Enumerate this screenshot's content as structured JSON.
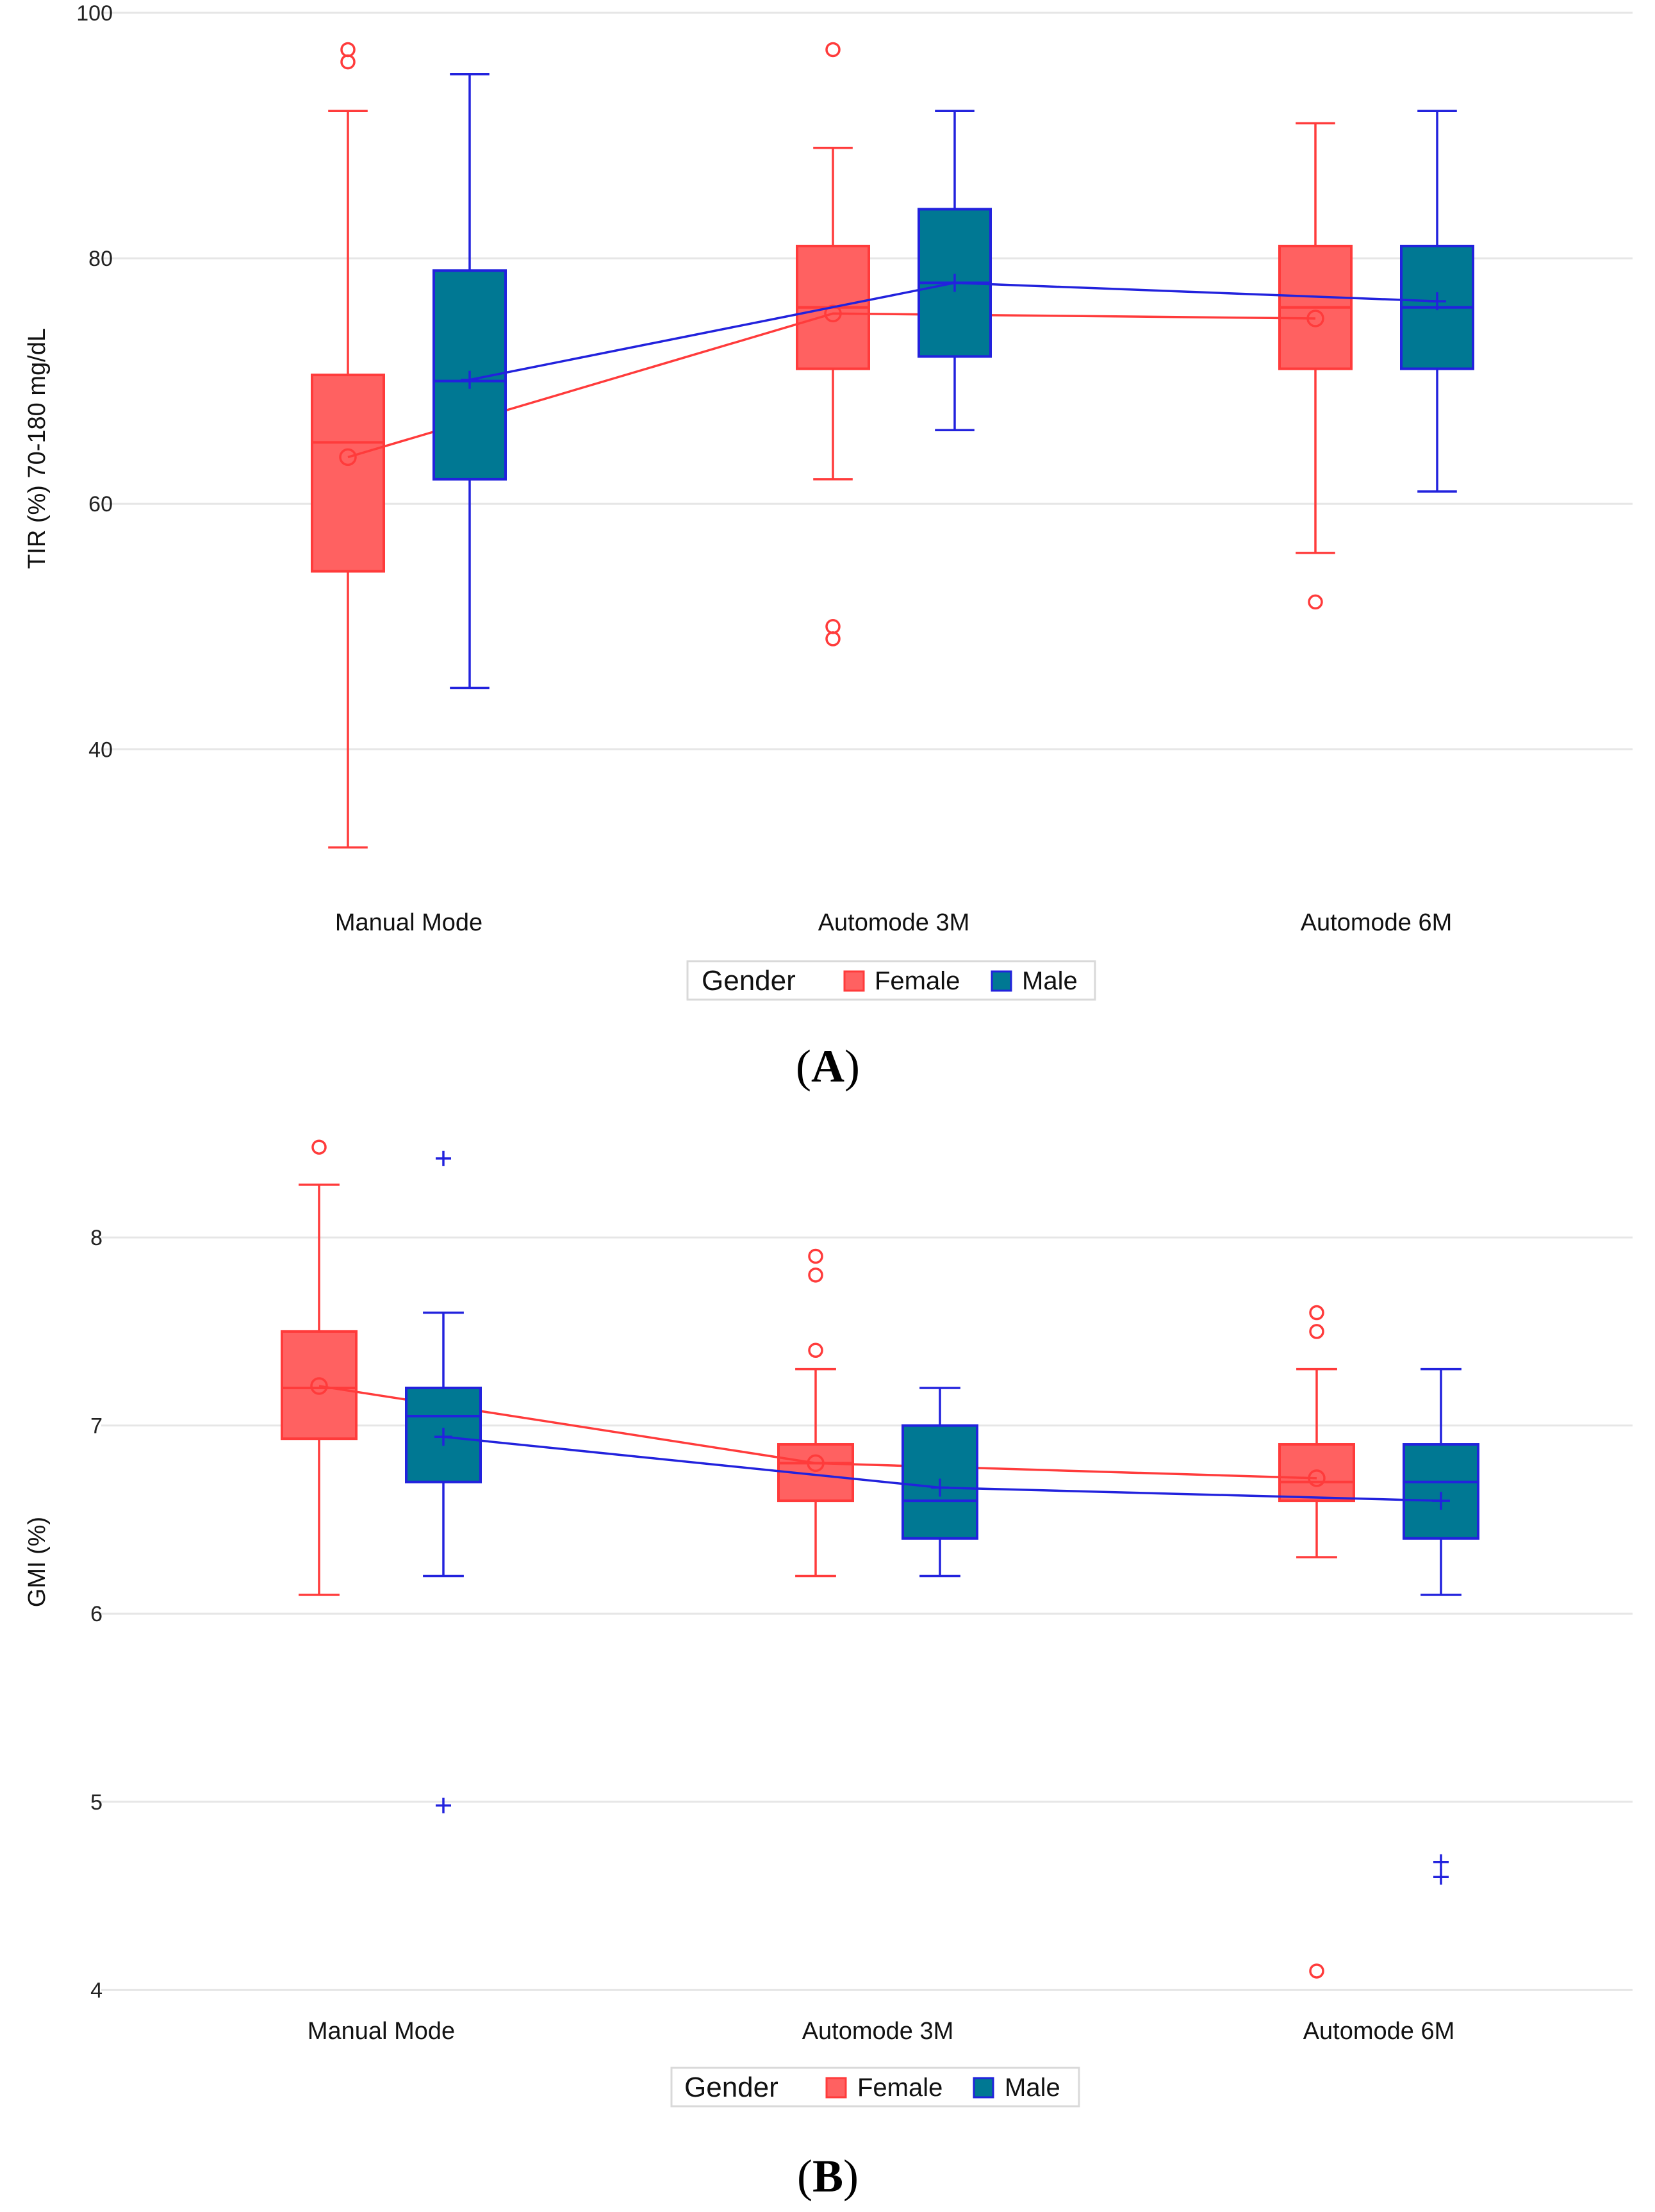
{
  "chart_data": [
    {
      "type": "box",
      "panel_label": "A",
      "ylabel": "TIR (%) 70-180 mg/dL",
      "ylim": [
        29,
        100
      ],
      "yticks": [
        40,
        60,
        80,
        100
      ],
      "categories": [
        "Manual Mode",
        "Automode 3M",
        "Automode 6M"
      ],
      "grid": "horizontal",
      "legend": {
        "title": "Gender",
        "position": "bottom"
      },
      "series": [
        {
          "name": "Female",
          "color": "#ff6161",
          "edge": "#ff3b3b",
          "mean_marker": "circle",
          "boxes": [
            {
              "min": 32,
              "q1": 54.5,
              "median": 65,
              "q3": 70.5,
              "max": 92,
              "mean": 63.8,
              "outliers": [
                96,
                97
              ]
            },
            {
              "min": 62,
              "q1": 71,
              "median": 76,
              "q3": 81,
              "max": 89,
              "mean": 75.5,
              "outliers": [
                49,
                50,
                97
              ]
            },
            {
              "min": 56,
              "q1": 71,
              "median": 76,
              "q3": 81,
              "max": 91,
              "mean": 75.1,
              "outliers": [
                52
              ]
            }
          ]
        },
        {
          "name": "Male",
          "color": "#007893",
          "edge": "#2222dd",
          "mean_marker": "plus",
          "boxes": [
            {
              "min": 45,
              "q1": 62,
              "median": 70,
              "q3": 79,
              "max": 95,
              "mean": 70.1,
              "outliers": []
            },
            {
              "min": 66,
              "q1": 72,
              "median": 78,
              "q3": 84,
              "max": 92,
              "mean": 78,
              "outliers": []
            },
            {
              "min": 61,
              "q1": 71,
              "median": 76,
              "q3": 81,
              "max": 92,
              "mean": 76.5,
              "outliers": []
            }
          ]
        }
      ]
    },
    {
      "type": "box",
      "panel_label": "B",
      "ylabel": "GMI (%)",
      "ylim": [
        3.95,
        8.6
      ],
      "yticks": [
        4,
        5,
        6,
        7,
        8
      ],
      "categories": [
        "Manual Mode",
        "Automode 3M",
        "Automode 6M"
      ],
      "grid": "horizontal",
      "legend": {
        "title": "Gender",
        "position": "bottom"
      },
      "series": [
        {
          "name": "Female",
          "color": "#ff6161",
          "edge": "#ff3b3b",
          "mean_marker": "circle",
          "boxes": [
            {
              "min": 6.1,
              "q1": 6.93,
              "median": 7.2,
              "q3": 7.5,
              "max": 8.28,
              "mean": 7.21,
              "outliers": [
                8.48
              ]
            },
            {
              "min": 6.2,
              "q1": 6.6,
              "median": 6.8,
              "q3": 6.9,
              "max": 7.3,
              "mean": 6.8,
              "outliers": [
                7.4,
                7.8,
                7.9
              ]
            },
            {
              "min": 6.3,
              "q1": 6.6,
              "median": 6.7,
              "q3": 6.9,
              "max": 7.3,
              "mean": 6.72,
              "outliers": [
                4.1,
                7.5,
                7.6
              ]
            }
          ]
        },
        {
          "name": "Male",
          "color": "#007893",
          "edge": "#2222dd",
          "mean_marker": "plus",
          "boxes": [
            {
              "min": 6.2,
              "q1": 6.7,
              "median": 7.05,
              "q3": 7.2,
              "max": 7.6,
              "mean": 6.94,
              "outliers": [
                4.98,
                8.42
              ]
            },
            {
              "min": 6.2,
              "q1": 6.4,
              "median": 6.6,
              "q3": 7.0,
              "max": 7.2,
              "mean": 6.67,
              "outliers": []
            },
            {
              "min": 6.1,
              "q1": 6.4,
              "median": 6.7,
              "q3": 6.9,
              "max": 7.3,
              "mean": 6.6,
              "outliers": [
                4.6,
                4.68
              ]
            }
          ]
        }
      ]
    }
  ]
}
